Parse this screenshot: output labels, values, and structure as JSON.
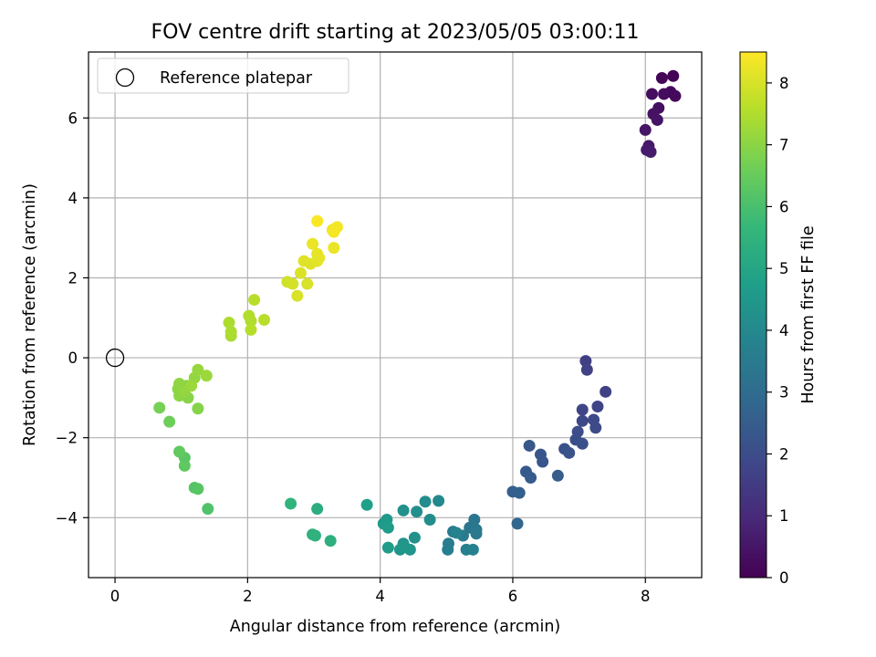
{
  "chart_data": {
    "type": "scatter",
    "title": "FOV centre drift starting at 2023/05/05 03:00:11",
    "xlabel": "Angular distance from reference (arcmin)",
    "ylabel": "Rotation from reference (arcmin)",
    "xlim": [
      -0.4,
      8.85
    ],
    "ylim": [
      -5.5,
      7.65
    ],
    "xticks": [
      0,
      2,
      4,
      6,
      8
    ],
    "yticks": [
      -4,
      -2,
      0,
      2,
      4,
      6
    ],
    "grid": true,
    "legend": {
      "position": "top-left",
      "entries": [
        "Reference platepar"
      ]
    },
    "reference_point": {
      "x": 0,
      "y": 0
    },
    "colorbar": {
      "label": "Hours from first FF file",
      "range": [
        0,
        8.5
      ],
      "ticks": [
        0,
        1,
        2,
        3,
        4,
        5,
        6,
        7,
        8
      ],
      "colormap": "viridis",
      "colors": [
        "#440154",
        "#482878",
        "#3e4989",
        "#31688e",
        "#26828e",
        "#1f9e89",
        "#35b779",
        "#6ece58",
        "#b5de2b",
        "#fde725"
      ]
    },
    "points": [
      {
        "x": 8.42,
        "y": 7.05,
        "t": 0.05
      },
      {
        "x": 8.25,
        "y": 7.0,
        "t": 0.1
      },
      {
        "x": 8.38,
        "y": 6.65,
        "t": 0.15
      },
      {
        "x": 8.45,
        "y": 6.55,
        "t": 0.2
      },
      {
        "x": 8.28,
        "y": 6.6,
        "t": 0.25
      },
      {
        "x": 8.1,
        "y": 6.6,
        "t": 0.3
      },
      {
        "x": 8.2,
        "y": 6.25,
        "t": 0.35
      },
      {
        "x": 8.12,
        "y": 6.1,
        "t": 0.4
      },
      {
        "x": 8.18,
        "y": 5.95,
        "t": 0.45
      },
      {
        "x": 8.0,
        "y": 5.7,
        "t": 0.5
      },
      {
        "x": 8.05,
        "y": 5.3,
        "t": 0.55
      },
      {
        "x": 8.02,
        "y": 5.2,
        "t": 0.6
      },
      {
        "x": 8.08,
        "y": 5.15,
        "t": 0.65
      },
      {
        "x": 7.1,
        "y": -0.08,
        "t": 1.6
      },
      {
        "x": 7.12,
        "y": -0.3,
        "t": 1.65
      },
      {
        "x": 7.4,
        "y": -0.85,
        "t": 1.7
      },
      {
        "x": 7.28,
        "y": -1.22,
        "t": 1.75
      },
      {
        "x": 7.05,
        "y": -1.3,
        "t": 1.8
      },
      {
        "x": 7.05,
        "y": -1.58,
        "t": 1.85
      },
      {
        "x": 7.22,
        "y": -1.55,
        "t": 1.9
      },
      {
        "x": 7.25,
        "y": -1.75,
        "t": 1.95
      },
      {
        "x": 6.98,
        "y": -1.85,
        "t": 2.0
      },
      {
        "x": 6.95,
        "y": -2.05,
        "t": 2.05
      },
      {
        "x": 7.05,
        "y": -2.15,
        "t": 2.1
      },
      {
        "x": 6.78,
        "y": -2.28,
        "t": 2.15
      },
      {
        "x": 6.85,
        "y": -2.38,
        "t": 2.2
      },
      {
        "x": 6.42,
        "y": -2.42,
        "t": 2.25
      },
      {
        "x": 6.45,
        "y": -2.6,
        "t": 2.3
      },
      {
        "x": 6.25,
        "y": -2.2,
        "t": 2.35
      },
      {
        "x": 6.2,
        "y": -2.85,
        "t": 2.4
      },
      {
        "x": 6.27,
        "y": -3.0,
        "t": 2.45
      },
      {
        "x": 6.68,
        "y": -2.95,
        "t": 2.5
      },
      {
        "x": 6.0,
        "y": -3.35,
        "t": 2.55
      },
      {
        "x": 6.1,
        "y": -3.38,
        "t": 2.6
      },
      {
        "x": 6.07,
        "y": -4.15,
        "t": 2.8
      },
      {
        "x": 5.42,
        "y": -4.05,
        "t": 3.3
      },
      {
        "x": 5.35,
        "y": -4.25,
        "t": 3.35
      },
      {
        "x": 5.45,
        "y": -4.3,
        "t": 3.4
      },
      {
        "x": 5.45,
        "y": -4.4,
        "t": 3.45
      },
      {
        "x": 5.1,
        "y": -4.35,
        "t": 3.5
      },
      {
        "x": 5.25,
        "y": -4.45,
        "t": 3.55
      },
      {
        "x": 5.03,
        "y": -4.65,
        "t": 3.6
      },
      {
        "x": 5.02,
        "y": -4.8,
        "t": 3.65
      },
      {
        "x": 5.3,
        "y": -4.8,
        "t": 3.7
      },
      {
        "x": 5.4,
        "y": -4.8,
        "t": 3.75
      },
      {
        "x": 5.15,
        "y": -4.38,
        "t": 3.8
      },
      {
        "x": 4.88,
        "y": -3.58,
        "t": 4.0
      },
      {
        "x": 4.68,
        "y": -3.6,
        "t": 4.1
      },
      {
        "x": 4.75,
        "y": -4.05,
        "t": 4.15
      },
      {
        "x": 4.55,
        "y": -3.85,
        "t": 4.2
      },
      {
        "x": 4.35,
        "y": -3.82,
        "t": 4.25
      },
      {
        "x": 4.52,
        "y": -4.5,
        "t": 4.3
      },
      {
        "x": 4.35,
        "y": -4.65,
        "t": 4.35
      },
      {
        "x": 4.3,
        "y": -4.8,
        "t": 4.4
      },
      {
        "x": 4.45,
        "y": -4.8,
        "t": 4.45
      },
      {
        "x": 4.35,
        "y": -4.72,
        "t": 4.5
      },
      {
        "x": 4.1,
        "y": -4.05,
        "t": 4.55
      },
      {
        "x": 4.05,
        "y": -4.15,
        "t": 4.6
      },
      {
        "x": 4.12,
        "y": -4.25,
        "t": 4.65
      },
      {
        "x": 4.12,
        "y": -4.75,
        "t": 4.7
      },
      {
        "x": 3.8,
        "y": -3.68,
        "t": 4.75
      },
      {
        "x": 3.05,
        "y": -3.78,
        "t": 5.3
      },
      {
        "x": 3.25,
        "y": -4.58,
        "t": 5.35
      },
      {
        "x": 2.98,
        "y": -4.42,
        "t": 5.4
      },
      {
        "x": 3.02,
        "y": -4.45,
        "t": 5.45
      },
      {
        "x": 2.65,
        "y": -3.65,
        "t": 5.5
      },
      {
        "x": 1.4,
        "y": -3.78,
        "t": 6.1
      },
      {
        "x": 1.2,
        "y": -3.25,
        "t": 6.2
      },
      {
        "x": 1.25,
        "y": -3.28,
        "t": 6.25
      },
      {
        "x": 1.05,
        "y": -2.5,
        "t": 6.3
      },
      {
        "x": 1.05,
        "y": -2.7,
        "t": 6.35
      },
      {
        "x": 0.97,
        "y": -2.35,
        "t": 6.4
      },
      {
        "x": 0.82,
        "y": -1.6,
        "t": 6.6
      },
      {
        "x": 0.67,
        "y": -1.25,
        "t": 6.7
      },
      {
        "x": 1.25,
        "y": -1.27,
        "t": 6.9
      },
      {
        "x": 1.1,
        "y": -1.0,
        "t": 6.95
      },
      {
        "x": 0.97,
        "y": -0.95,
        "t": 7.0
      },
      {
        "x": 0.95,
        "y": -0.78,
        "t": 7.0
      },
      {
        "x": 0.97,
        "y": -0.65,
        "t": 7.05
      },
      {
        "x": 1.08,
        "y": -0.7,
        "t": 7.05
      },
      {
        "x": 1.05,
        "y": -0.85,
        "t": 7.1
      },
      {
        "x": 1.2,
        "y": -0.5,
        "t": 7.1
      },
      {
        "x": 1.25,
        "y": -0.3,
        "t": 7.15
      },
      {
        "x": 1.38,
        "y": -0.45,
        "t": 7.2
      },
      {
        "x": 1.15,
        "y": -0.7,
        "t": 7.2
      },
      {
        "x": 1.75,
        "y": 0.55,
        "t": 7.4
      },
      {
        "x": 1.72,
        "y": 0.88,
        "t": 7.45
      },
      {
        "x": 1.75,
        "y": 0.65,
        "t": 7.45
      },
      {
        "x": 2.02,
        "y": 1.05,
        "t": 7.5
      },
      {
        "x": 2.05,
        "y": 0.92,
        "t": 7.5
      },
      {
        "x": 2.05,
        "y": 0.7,
        "t": 7.55
      },
      {
        "x": 2.1,
        "y": 1.45,
        "t": 7.6
      },
      {
        "x": 2.25,
        "y": 0.95,
        "t": 7.6
      },
      {
        "x": 2.6,
        "y": 1.9,
        "t": 7.9
      },
      {
        "x": 2.68,
        "y": 1.85,
        "t": 7.95
      },
      {
        "x": 2.75,
        "y": 1.55,
        "t": 8.0
      },
      {
        "x": 2.9,
        "y": 1.85,
        "t": 8.0
      },
      {
        "x": 2.8,
        "y": 2.12,
        "t": 8.05
      },
      {
        "x": 2.85,
        "y": 2.42,
        "t": 8.1
      },
      {
        "x": 2.95,
        "y": 2.35,
        "t": 8.1
      },
      {
        "x": 3.05,
        "y": 2.42,
        "t": 8.15
      },
      {
        "x": 3.08,
        "y": 2.5,
        "t": 8.2
      },
      {
        "x": 3.05,
        "y": 2.6,
        "t": 8.2
      },
      {
        "x": 3.3,
        "y": 2.75,
        "t": 8.25
      },
      {
        "x": 2.98,
        "y": 2.85,
        "t": 8.25
      },
      {
        "x": 3.28,
        "y": 3.2,
        "t": 8.3
      },
      {
        "x": 3.35,
        "y": 3.27,
        "t": 8.35
      },
      {
        "x": 3.3,
        "y": 3.15,
        "t": 8.4
      },
      {
        "x": 3.05,
        "y": 3.42,
        "t": 8.45
      }
    ]
  }
}
